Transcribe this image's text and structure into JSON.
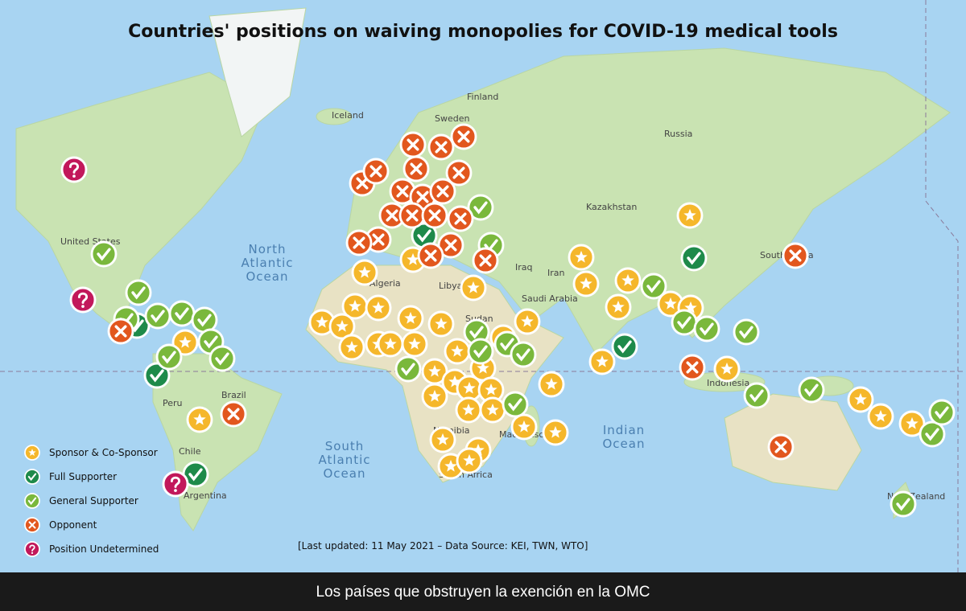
{
  "header": {
    "title": "Countries' positions on waiving monopolies for COVID-19 medical tools"
  },
  "map": {
    "labels": [
      "Finland",
      "Sweden",
      "Iceland",
      "Russia",
      "Kazakhstan",
      "United States",
      "Algeria",
      "Libya",
      "Iraq",
      "Iran",
      "Saudi Arabia",
      "South Korea",
      "Sudan",
      "Brazil",
      "Peru",
      "Chile",
      "Argentina",
      "Indonesia",
      "Namibia",
      "Madagascar",
      "South Africa",
      "New Zealand"
    ],
    "oceans": [
      [
        "North",
        "Atlantic",
        "Ocean"
      ],
      [
        "South",
        "Atlantic",
        "Ocean"
      ],
      [
        "Indian",
        "Ocean"
      ]
    ]
  },
  "legend": {
    "items": [
      "Sponsor & Co-Sponsor",
      "Full Supporter",
      "General Supporter",
      "Opponent",
      "Position Undetermined"
    ]
  },
  "footnote": "[Last updated: 11 May 2021 – Data Source: KEI, TWN, WTO]",
  "caption": "Los países que obstruyen la exención en la OMC"
}
